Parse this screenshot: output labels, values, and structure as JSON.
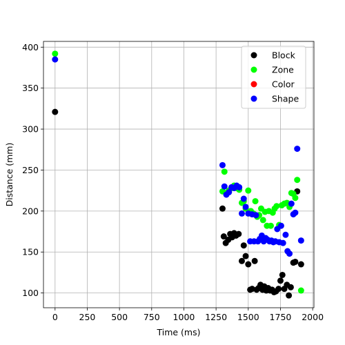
{
  "chart_data": {
    "type": "scatter",
    "title": "",
    "xlabel": "Time (ms)",
    "ylabel": "Distance (mm)",
    "xlim": [
      -90,
      2010
    ],
    "ylim": [
      82,
      407
    ],
    "xticks": [
      0,
      250,
      500,
      750,
      1000,
      1250,
      1500,
      1750,
      2000
    ],
    "yticks": [
      100,
      150,
      200,
      250,
      300,
      350,
      400
    ],
    "grid": true,
    "legend_position": "top-right",
    "series": [
      {
        "name": "Block",
        "color": "#000000",
        "points": [
          [
            0,
            321
          ],
          [
            1300,
            203
          ],
          [
            1310,
            169
          ],
          [
            1325,
            161
          ],
          [
            1345,
            165
          ],
          [
            1360,
            172
          ],
          [
            1375,
            168
          ],
          [
            1390,
            173
          ],
          [
            1405,
            170
          ],
          [
            1425,
            172
          ],
          [
            1450,
            139
          ],
          [
            1465,
            158
          ],
          [
            1480,
            145
          ],
          [
            1500,
            135
          ],
          [
            1515,
            104
          ],
          [
            1530,
            105
          ],
          [
            1550,
            139
          ],
          [
            1565,
            104
          ],
          [
            1580,
            106
          ],
          [
            1595,
            110
          ],
          [
            1610,
            104
          ],
          [
            1625,
            108
          ],
          [
            1640,
            103
          ],
          [
            1655,
            106
          ],
          [
            1670,
            103
          ],
          [
            1685,
            104
          ],
          [
            1700,
            101
          ],
          [
            1715,
            102
          ],
          [
            1735,
            105
          ],
          [
            1750,
            115
          ],
          [
            1765,
            122
          ],
          [
            1780,
            105
          ],
          [
            1800,
            110
          ],
          [
            1815,
            97
          ],
          [
            1830,
            107
          ],
          [
            1850,
            137
          ],
          [
            1865,
            138
          ],
          [
            1880,
            224
          ],
          [
            1910,
            135
          ]
        ]
      },
      {
        "name": "Zone",
        "color": "#00ff00",
        "points": [
          [
            0,
            392
          ],
          [
            1300,
            224
          ],
          [
            1315,
            248
          ],
          [
            1330,
            222
          ],
          [
            1350,
            225
          ],
          [
            1370,
            228
          ],
          [
            1390,
            231
          ],
          [
            1410,
            228
          ],
          [
            1430,
            226
          ],
          [
            1450,
            210
          ],
          [
            1465,
            212
          ],
          [
            1480,
            203
          ],
          [
            1500,
            225
          ],
          [
            1520,
            200
          ],
          [
            1540,
            197
          ],
          [
            1555,
            212
          ],
          [
            1570,
            193
          ],
          [
            1585,
            195
          ],
          [
            1600,
            203
          ],
          [
            1615,
            189
          ],
          [
            1630,
            199
          ],
          [
            1645,
            182
          ],
          [
            1660,
            200
          ],
          [
            1675,
            182
          ],
          [
            1690,
            198
          ],
          [
            1705,
            203
          ],
          [
            1720,
            206
          ],
          [
            1740,
            183
          ],
          [
            1760,
            207
          ],
          [
            1780,
            209
          ],
          [
            1800,
            210
          ],
          [
            1820,
            205
          ],
          [
            1835,
            222
          ],
          [
            1850,
            221
          ],
          [
            1865,
            216
          ],
          [
            1880,
            238
          ],
          [
            1910,
            103
          ]
        ]
      },
      {
        "name": "Color",
        "color": "#ff0000",
        "points": []
      },
      {
        "name": "Shape",
        "color": "#0000ff",
        "points": [
          [
            0,
            385
          ],
          [
            1300,
            256
          ],
          [
            1315,
            230
          ],
          [
            1330,
            220
          ],
          [
            1350,
            223
          ],
          [
            1370,
            229
          ],
          [
            1390,
            228
          ],
          [
            1410,
            231
          ],
          [
            1430,
            229
          ],
          [
            1450,
            197
          ],
          [
            1465,
            215
          ],
          [
            1480,
            205
          ],
          [
            1500,
            197
          ],
          [
            1515,
            163
          ],
          [
            1530,
            196
          ],
          [
            1545,
            163
          ],
          [
            1560,
            195
          ],
          [
            1575,
            163
          ],
          [
            1590,
            166
          ],
          [
            1605,
            170
          ],
          [
            1620,
            163
          ],
          [
            1635,
            167
          ],
          [
            1650,
            165
          ],
          [
            1665,
            163
          ],
          [
            1680,
            164
          ],
          [
            1695,
            162
          ],
          [
            1710,
            163
          ],
          [
            1725,
            178
          ],
          [
            1740,
            162
          ],
          [
            1755,
            182
          ],
          [
            1770,
            161
          ],
          [
            1790,
            171
          ],
          [
            1805,
            151
          ],
          [
            1820,
            148
          ],
          [
            1835,
            209
          ],
          [
            1850,
            196
          ],
          [
            1865,
            198
          ],
          [
            1880,
            276
          ],
          [
            1910,
            164
          ]
        ]
      }
    ]
  }
}
